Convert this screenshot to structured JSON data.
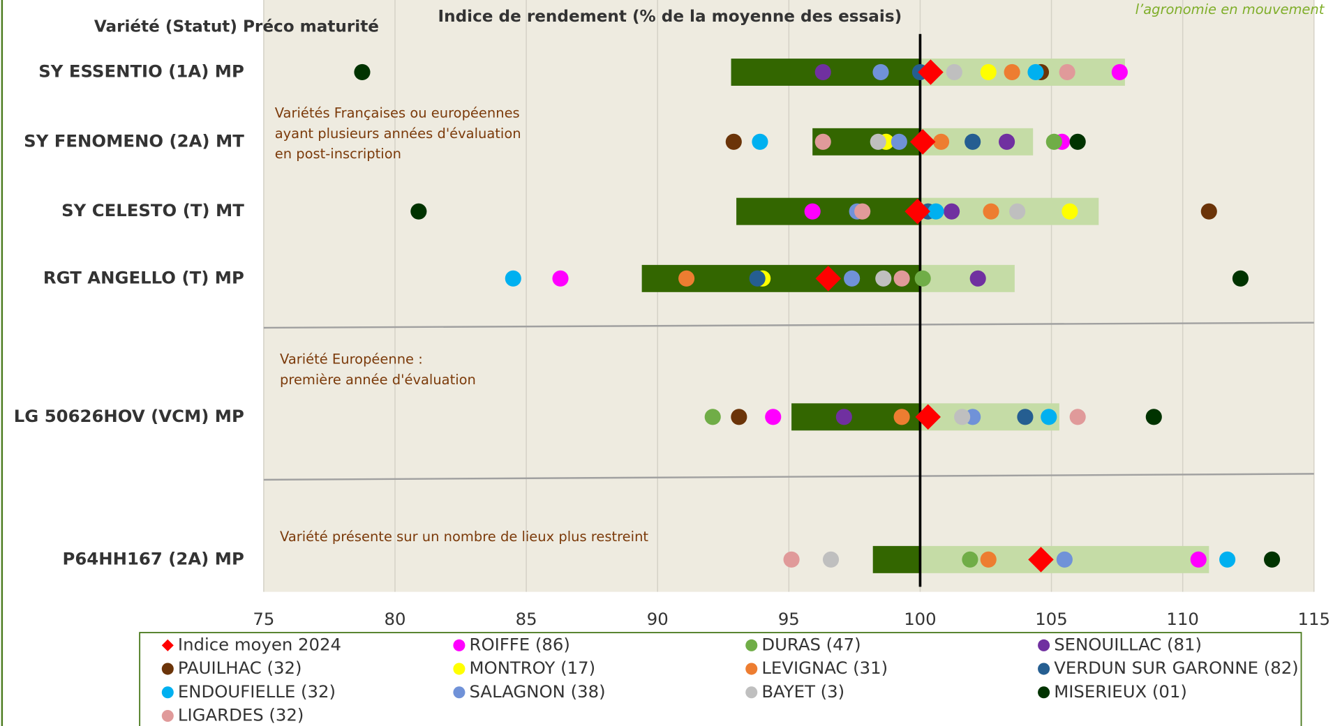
{
  "chart_data": {
    "type": "dotplot",
    "title": "Indice de rendement (% de la moyenne des essais)",
    "y_header": "Variété (Statut) Préco maturité",
    "logo_text": "l’agronomie en mouvement",
    "categories": [
      "SY ESSENTIO (1A) MP",
      "SY FENOMENO (2A) MT",
      "SY CELESTO (T) MT",
      "RGT ANGELLO (T) MP",
      "LG 50626HOV (VCM) MP",
      "P64HH167 (2A) MP"
    ],
    "bar_low": [
      92.8,
      95.9,
      93.0,
      89.4,
      95.1,
      98.2
    ],
    "bar_high": [
      107.8,
      104.3,
      106.8,
      103.6,
      105.3,
      111.0
    ],
    "bar_colors": [
      "#336600",
      "#c5dca6"
    ],
    "ref_line": 100,
    "xlim": [
      75,
      115
    ],
    "xticks": [
      75,
      80,
      85,
      90,
      95,
      100,
      105,
      110,
      115
    ],
    "grid": true,
    "annotations": [
      [
        "Variétés Françaises ou européennes",
        "ayant plusieurs années d'évaluation",
        "en post-inscription"
      ],
      [
        "Variété Européenne :",
        "première année d'évaluation"
      ],
      [
        "Variété présente sur un nombre de lieux plus restreint"
      ]
    ],
    "series": [
      {
        "name": "Indice moyen 2024",
        "color": "#ff0000",
        "marker": "diamond",
        "values": [
          100.4,
          100.1,
          99.9,
          96.5,
          100.3,
          104.6
        ]
      },
      {
        "name": "ROIFFE (86)",
        "color": "#ff00ff",
        "values": [
          107.6,
          105.4,
          95.9,
          86.3,
          94.4,
          110.6
        ]
      },
      {
        "name": "DURAS (47)",
        "color": "#70ad47",
        "values": [
          null,
          105.1,
          null,
          100.1,
          92.1,
          101.9
        ]
      },
      {
        "name": "SENOUILLAC (81)",
        "color": "#7030a0",
        "values": [
          96.3,
          103.3,
          101.2,
          102.2,
          97.1,
          null
        ]
      },
      {
        "name": "PAUILHAC (32)",
        "color": "#6b3409",
        "values": [
          104.6,
          92.9,
          111.0,
          null,
          93.1,
          null
        ]
      },
      {
        "name": "MONTROY (17)",
        "color": "#ffff00",
        "values": [
          102.6,
          98.7,
          105.7,
          94.0,
          null,
          null
        ]
      },
      {
        "name": "LEVIGNAC (31)",
        "color": "#ed7d31",
        "values": [
          103.5,
          100.8,
          102.7,
          91.1,
          99.3,
          102.6
        ]
      },
      {
        "name": "VERDUN SUR GARONNE (82)",
        "color": "#255e91",
        "values": [
          100.0,
          102.0,
          100.3,
          93.8,
          104.0,
          null
        ]
      },
      {
        "name": "ENDOUFIELLE (32)",
        "color": "#00b0f0",
        "values": [
          104.4,
          93.9,
          100.6,
          84.5,
          104.9,
          111.7
        ]
      },
      {
        "name": "SALAGNON (38)",
        "color": "#7092d8",
        "values": [
          98.5,
          99.2,
          97.6,
          97.4,
          102.0,
          105.5
        ]
      },
      {
        "name": "BAYET (3)",
        "color": "#bfbfbf",
        "values": [
          101.3,
          98.4,
          103.7,
          98.6,
          101.6,
          96.6
        ]
      },
      {
        "name": "MISERIEUX (01)",
        "color": "#003300",
        "values": [
          78.75,
          106.0,
          80.9,
          112.2,
          108.9,
          113.4
        ]
      },
      {
        "name": "LIGARDES (32)",
        "color": "#e09a9a",
        "values": [
          105.6,
          96.3,
          97.8,
          99.3,
          106.0,
          95.1
        ]
      }
    ]
  }
}
